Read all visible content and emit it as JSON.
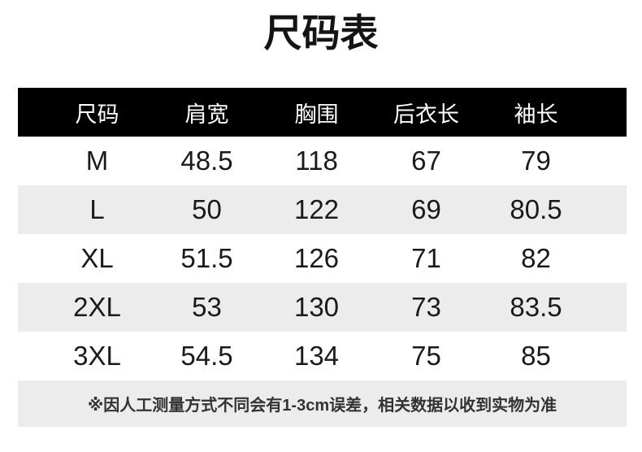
{
  "chart_data": {
    "type": "table",
    "title": "尺码表",
    "columns": [
      "尺码",
      "肩宽",
      "胸围",
      "后衣长",
      "袖长"
    ],
    "rows": [
      [
        "M",
        "48.5",
        "118",
        "67",
        "79"
      ],
      [
        "L",
        "50",
        "122",
        "69",
        "80.5"
      ],
      [
        "XL",
        "51.5",
        "126",
        "71",
        "82"
      ],
      [
        "2XL",
        "53",
        "130",
        "73",
        "83.5"
      ],
      [
        "3XL",
        "54.5",
        "134",
        "75",
        "85"
      ]
    ],
    "footnote": "※因人工测量方式不同会有1-3cm误差，相关数据以收到实物为准",
    "layout": {
      "header_style": "black-bar-white-text",
      "row_striping": "white-gray-alternating",
      "units": "cm"
    }
  },
  "colors": {
    "page_bg": "#ffffff",
    "header_bg": "#000000",
    "header_text": "#ffffff",
    "stripe_bg": "#ececec",
    "note_bg": "#ececec",
    "body_text": "#1a1a1a",
    "note_text": "#333333"
  }
}
